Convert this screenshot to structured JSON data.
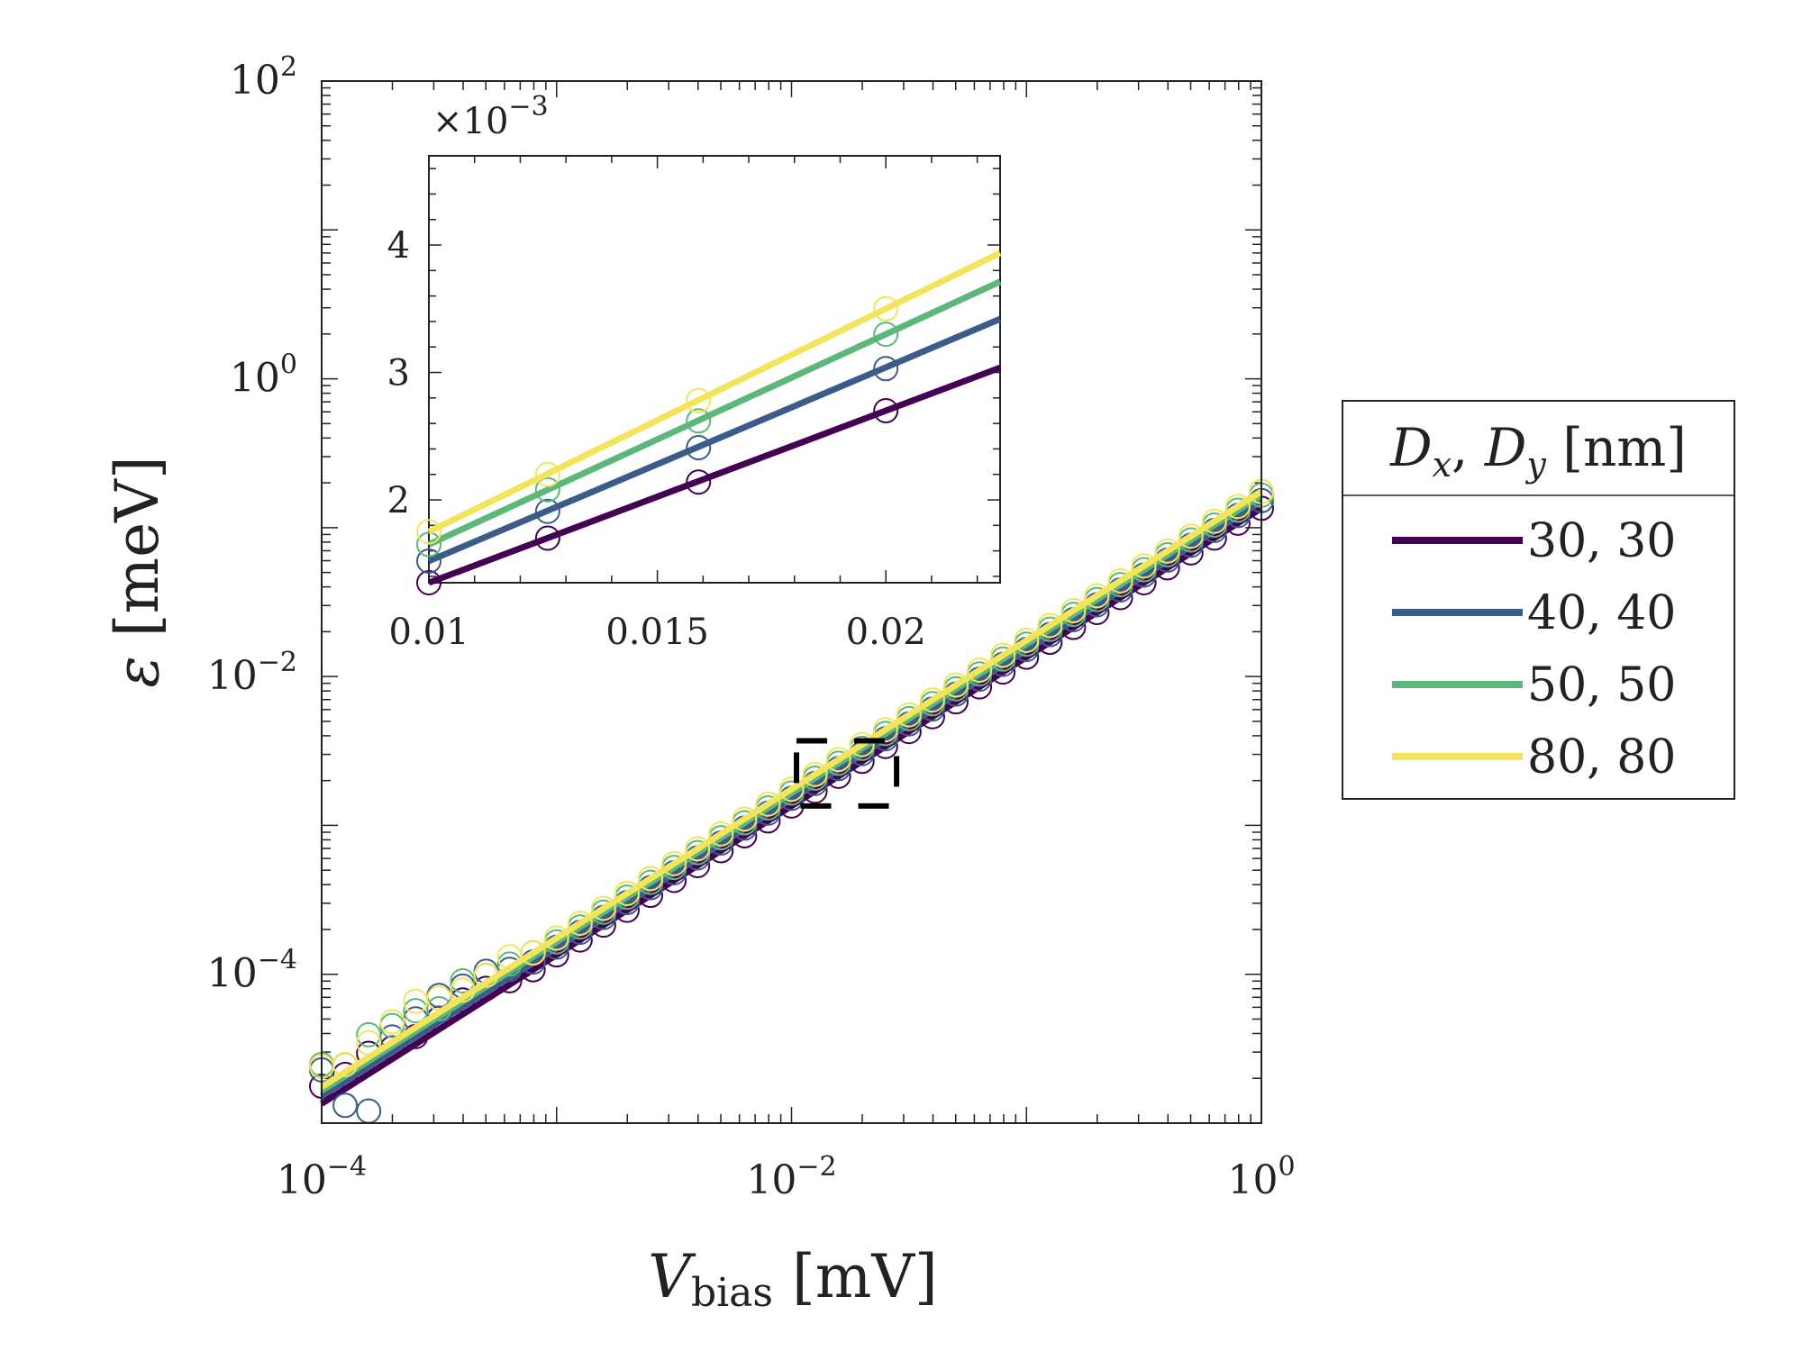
{
  "chart_data": [
    {
      "type": "scatter",
      "role": "main",
      "xlabel": "V_bias [mV]",
      "xlabel_main": "V",
      "xlabel_sub": "bias",
      "xlabel_unit": "[mV]",
      "ylabel": "ε [meV]",
      "ylabel_symbol": "ε",
      "ylabel_unit": "[meV]",
      "xscale": "log",
      "yscale": "log",
      "xlim": [
        0.0001,
        1
      ],
      "ylim": [
        1e-05,
        100
      ],
      "xticks": [
        {
          "value": 0.0001,
          "base": "10",
          "exp": "−4"
        },
        {
          "value": 0.01,
          "base": "10",
          "exp": "−2"
        },
        {
          "value": 1,
          "base": "10",
          "exp": "0"
        }
      ],
      "yticks": [
        {
          "value": 0.0001,
          "base": "10",
          "exp": "−4"
        },
        {
          "value": 0.01,
          "base": "10",
          "exp": "−2"
        },
        {
          "value": 1,
          "base": "10",
          "exp": "0"
        },
        {
          "value": 100,
          "base": "10",
          "exp": "2"
        }
      ],
      "legend": {
        "title_parts": [
          "D",
          "x",
          ", ",
          "D",
          "y",
          " [nm]"
        ],
        "placement": "outside-right"
      },
      "series": [
        {
          "name": "30, 30",
          "color": "#440154",
          "fit": {
            "a": 0.135,
            "b": 1.0
          }
        },
        {
          "name": "40, 40",
          "color": "#3b5c8a",
          "fit": {
            "a": 0.152,
            "b": 1.0
          }
        },
        {
          "name": "50, 50",
          "color": "#5cb87a",
          "fit": {
            "a": 0.165,
            "b": 1.0
          }
        },
        {
          "name": "80, 80",
          "color": "#f2e55b",
          "fit": {
            "a": 0.175,
            "b": 1.0
          }
        }
      ],
      "markers_per_decade": 10,
      "low_noise": [
        [
          2.1,
          2.0,
          2.2,
          1.9,
          1.8,
          1.9,
          2.0,
          1.9,
          1.7,
          1.6
        ],
        [
          2.4,
          1.1,
          0.8,
          2.0,
          2.1,
          2.4,
          2.2,
          2.2,
          1.8,
          1.6
        ],
        [
          2.4,
          1.9,
          2.4,
          2.2,
          2.2,
          1.8,
          2.2,
          1.9,
          1.8,
          1.7
        ],
        [
          2.2,
          1.8,
          2.0,
          2.2,
          2.4,
          2.0,
          1.8,
          1.8,
          1.9,
          1.6
        ]
      ],
      "zoom_box": {
        "x": [
          0.0105,
          0.028
        ],
        "y": [
          0.00135,
          0.0037
        ]
      }
    },
    {
      "type": "scatter",
      "role": "inset",
      "xlim": [
        0.01,
        0.0225
      ],
      "ylim": [
        0.00135,
        0.0047
      ],
      "exponent_label_base": "×10",
      "exponent_label_exp": "−3",
      "xticks": [
        {
          "value": 0.01,
          "label": "0.01"
        },
        {
          "value": 0.015,
          "label": "0.015"
        },
        {
          "value": 0.02,
          "label": "0.02"
        }
      ],
      "yticks": [
        {
          "value": 0.002,
          "label": "2"
        },
        {
          "value": 0.003,
          "label": "3"
        },
        {
          "value": 0.004,
          "label": "4"
        }
      ],
      "x_points": [
        0.01,
        0.0126,
        0.0159,
        0.02
      ],
      "points": [
        [
          0.00135,
          0.0017,
          0.00214,
          0.0027
        ],
        [
          0.00152,
          0.00191,
          0.00241,
          0.00303
        ],
        [
          0.00165,
          0.00208,
          0.00262,
          0.0033
        ],
        [
          0.00175,
          0.0022,
          0.00278,
          0.0035
        ]
      ]
    }
  ]
}
